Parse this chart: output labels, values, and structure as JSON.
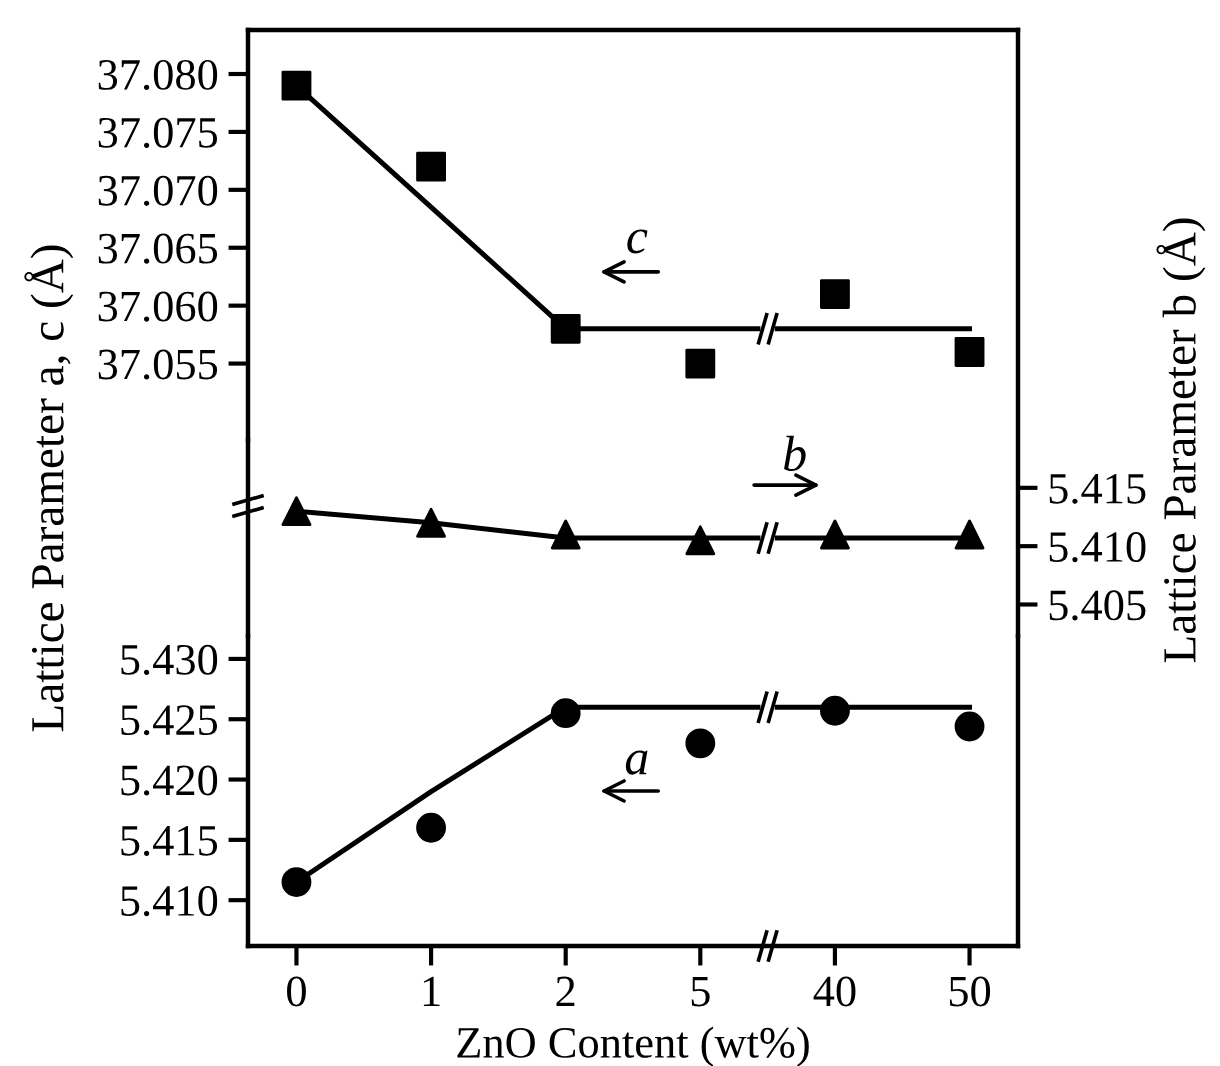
{
  "chart_data": [
    {
      "type": "scatter",
      "ylabel": "Lattice Parameter a, c (Å)",
      "categories": [
        "0",
        "1",
        "2",
        "5",
        "40",
        "50"
      ],
      "ylim": [
        37.0484,
        37.0838
      ],
      "yticks": [
        {
          "value": 37.055,
          "label": "37.055"
        },
        {
          "value": 37.06,
          "label": "37.060"
        },
        {
          "value": 37.065,
          "label": "37.065"
        },
        {
          "value": 37.07,
          "label": "37.070"
        },
        {
          "value": 37.075,
          "label": "37.075"
        },
        {
          "value": 37.08,
          "label": "37.080"
        }
      ],
      "tick_labels": "y",
      "annotations": [
        "c"
      ],
      "series": [
        {
          "color": "#000000",
          "marker": "square",
          "values": [
            37.079,
            37.072,
            37.058,
            37.055,
            37.061,
            37.056
          ]
        },
        {
          "type": "line",
          "color": "#000000",
          "marker": "none",
          "line_style": "solid",
          "values": [
            37.079,
            37.0685,
            37.058,
            37.058,
            37.058,
            37.058
          ]
        }
      ]
    },
    {
      "type": "scatter",
      "y2label": "Lattice Parameter b (Å)",
      "categories": [
        "0",
        "1",
        "2",
        "5",
        "40",
        "50"
      ],
      "y2lim": [
        5.4023,
        5.4191
      ],
      "y2ticks": [
        {
          "value": 5.405,
          "label": "5.405"
        },
        {
          "value": 5.41,
          "label": "5.410"
        },
        {
          "value": 5.415,
          "label": "5.415"
        }
      ],
      "tick_labels": "y",
      "annotations": [
        "b"
      ],
      "series": [
        {
          "axis": "y2",
          "color": "#000000",
          "marker": "triangle",
          "values": [
            5.413,
            5.412,
            5.411,
            5.4105,
            5.411,
            5.411
          ]
        },
        {
          "type": "line",
          "axis": "y2",
          "color": "#000000",
          "marker": "none",
          "line_style": "solid",
          "values": [
            5.413,
            5.412,
            5.4107,
            5.4107,
            5.4107,
            5.4107
          ]
        }
      ]
    },
    {
      "type": "scatter",
      "xlabel": "ZnO Content (wt%)",
      "categories": [
        "0",
        "1",
        "2",
        "5",
        "40",
        "50"
      ],
      "ylim": [
        5.4062,
        5.4319
      ],
      "yticks": [
        {
          "value": 5.41,
          "label": "5.410"
        },
        5.415,
        {
          "value": 5.42,
          "label": "5.420"
        },
        5.425,
        {
          "value": 5.43,
          "label": "5.430"
        }
      ],
      "annotations": [
        "a"
      ],
      "series": [
        {
          "color": "#000000",
          "marker": "circle",
          "values": [
            5.4115,
            5.416,
            5.4255,
            5.423,
            5.4257,
            5.4244
          ]
        },
        {
          "type": "line",
          "color": "#000000",
          "marker": "none",
          "line_style": "solid",
          "values": [
            5.4115,
            5.419,
            5.426,
            5.426,
            5.426,
            5.426
          ]
        }
      ]
    }
  ]
}
